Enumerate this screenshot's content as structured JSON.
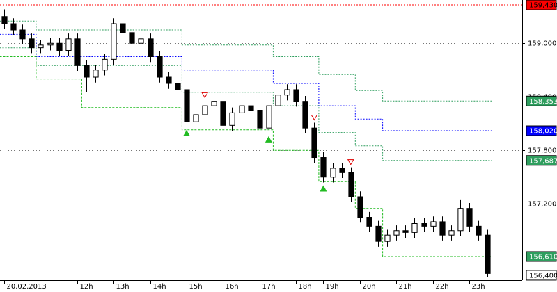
{
  "chart_data": {
    "type": "candlestick",
    "xlim": [
      -0.46,
      56.8
    ],
    "xticks": [
      {
        "value": 0,
        "label": "20.02.2013"
      },
      {
        "value": 8,
        "label": "12h"
      },
      {
        "value": 12,
        "label": "13h"
      },
      {
        "value": 16,
        "label": "14h"
      },
      {
        "value": 20,
        "label": "15h"
      },
      {
        "value": 24,
        "label": "16h"
      },
      {
        "value": 28,
        "label": "17h"
      },
      {
        "value": 32,
        "label": "18h"
      },
      {
        "value": 35,
        "label": "19h"
      },
      {
        "value": 39,
        "label": "20h"
      },
      {
        "value": 43,
        "label": "21h"
      },
      {
        "value": 47,
        "label": "22h"
      },
      {
        "value": 51,
        "label": "23h"
      }
    ],
    "ylim": [
      156.345,
      159.485
    ],
    "yticks": [
      {
        "value": 159.0,
        "label": "159,000"
      },
      {
        "value": 158.4,
        "label": "158,400"
      },
      {
        "value": 157.8,
        "label": "157,800"
      },
      {
        "value": 157.2,
        "label": "157,200"
      }
    ],
    "grid": true,
    "up_color": "#ffffff",
    "down_color": "#000000",
    "open": [
      159.3,
      159.22,
      159.15,
      159.05,
      158.95,
      158.98,
      159.0,
      158.92,
      159.05,
      158.75,
      158.62,
      158.7,
      158.82,
      159.22,
      159.12,
      159.0,
      159.05,
      158.85,
      158.62,
      158.55,
      158.48,
      158.12,
      158.2,
      158.3,
      158.35,
      158.08,
      158.22,
      158.3,
      158.25,
      158.05,
      158.3,
      158.42,
      158.48,
      158.35,
      158.05,
      157.72,
      157.5,
      157.6,
      157.55,
      157.28,
      157.05,
      156.95,
      156.78,
      156.85,
      156.9,
      156.88,
      156.98,
      156.95,
      157.0,
      156.85,
      156.9,
      157.15,
      156.95,
      156.85
    ],
    "close": [
      159.22,
      159.15,
      159.05,
      158.95,
      158.98,
      159.0,
      158.92,
      159.05,
      158.75,
      158.62,
      158.7,
      158.82,
      159.22,
      159.12,
      159.0,
      159.05,
      158.85,
      158.62,
      158.55,
      158.48,
      158.12,
      158.2,
      158.3,
      158.35,
      158.08,
      158.22,
      158.3,
      158.25,
      158.05,
      158.3,
      158.42,
      158.48,
      158.35,
      158.05,
      157.72,
      157.5,
      157.6,
      157.55,
      157.28,
      157.05,
      156.95,
      156.78,
      156.85,
      156.9,
      156.88,
      156.98,
      156.95,
      157.0,
      156.85,
      156.9,
      157.15,
      156.95,
      156.85,
      156.42
    ],
    "high": [
      159.38,
      159.28,
      159.21,
      159.11,
      159.04,
      159.06,
      159.06,
      159.11,
      159.11,
      158.81,
      158.76,
      158.88,
      159.28,
      159.28,
      159.18,
      159.11,
      159.11,
      158.91,
      158.68,
      158.61,
      158.54,
      158.26,
      158.36,
      158.41,
      158.41,
      158.28,
      158.36,
      158.36,
      158.31,
      158.36,
      158.48,
      158.54,
      158.54,
      158.41,
      158.11,
      157.78,
      157.66,
      157.66,
      157.61,
      157.34,
      157.11,
      157.01,
      156.91,
      156.96,
      156.96,
      157.04,
      157.04,
      157.06,
      157.06,
      156.96,
      157.25,
      157.21,
      157.01,
      156.91
    ],
    "low": [
      159.16,
      159.09,
      158.99,
      158.89,
      158.89,
      158.92,
      158.86,
      158.86,
      158.69,
      158.45,
      158.56,
      158.64,
      158.76,
      159.06,
      158.94,
      158.94,
      158.79,
      158.56,
      158.49,
      158.42,
      158.06,
      158.06,
      158.14,
      158.24,
      158.02,
      158.02,
      158.16,
      158.19,
      157.99,
      157.99,
      158.24,
      158.36,
      158.29,
      157.99,
      157.66,
      157.44,
      157.44,
      157.49,
      157.22,
      156.99,
      156.89,
      156.72,
      156.72,
      156.79,
      156.82,
      156.82,
      156.89,
      156.89,
      156.79,
      156.79,
      156.84,
      156.89,
      156.79,
      156.38
    ],
    "series": [
      {
        "color": "#2e9e5e",
        "values": [
          159.25,
          159.25,
          159.25,
          159.25,
          159.15,
          159.15,
          159.15,
          159.15,
          159.15,
          159.15,
          159.15,
          159.15,
          159.15,
          159.15,
          159.15,
          159.15,
          159.15,
          159.15,
          159.15,
          159.15,
          158.98,
          158.98,
          158.98,
          158.98,
          158.98,
          158.98,
          158.98,
          158.98,
          158.98,
          158.98,
          158.85,
          158.85,
          158.85,
          158.85,
          158.85,
          158.65,
          158.65,
          158.65,
          158.65,
          158.47,
          158.47,
          158.47,
          158.353,
          158.353,
          158.353,
          158.353,
          158.353,
          158.353,
          158.353,
          158.353,
          158.353,
          158.353,
          158.353,
          158.353
        ]
      },
      {
        "color": "#0000ff",
        "values": [
          159.1,
          159.1,
          159.1,
          159.1,
          158.85,
          158.85,
          158.85,
          158.85,
          158.85,
          158.85,
          158.85,
          158.85,
          158.85,
          158.85,
          158.85,
          158.85,
          158.85,
          158.85,
          158.85,
          158.85,
          158.7,
          158.7,
          158.7,
          158.7,
          158.7,
          158.7,
          158.7,
          158.7,
          158.7,
          158.7,
          158.55,
          158.55,
          158.55,
          158.55,
          158.55,
          158.3,
          158.3,
          158.3,
          158.3,
          158.15,
          158.15,
          158.15,
          158.02,
          158.02,
          158.02,
          158.02,
          158.02,
          158.02,
          158.02,
          158.02,
          158.02,
          158.02,
          158.02,
          158.02
        ]
      },
      {
        "color": "#2e9e5e",
        "values": [
          158.95,
          158.95,
          158.95,
          158.95,
          158.75,
          158.75,
          158.75,
          158.75,
          158.75,
          158.75,
          158.75,
          158.75,
          158.75,
          158.75,
          158.75,
          158.75,
          158.75,
          158.75,
          158.75,
          158.75,
          158.45,
          158.45,
          158.45,
          158.45,
          158.45,
          158.45,
          158.45,
          158.45,
          158.45,
          158.45,
          158.3,
          158.3,
          158.3,
          158.3,
          158.3,
          158.0,
          158.0,
          158.0,
          158.0,
          157.85,
          157.85,
          157.85,
          157.687,
          157.687,
          157.687,
          157.687,
          157.687,
          157.687,
          157.687,
          157.687,
          157.687,
          157.687,
          157.687,
          157.687
        ]
      },
      {
        "color": "#22bb22",
        "values": [
          158.85,
          158.85,
          158.85,
          158.85,
          158.6,
          158.6,
          158.6,
          158.6,
          158.6,
          158.28,
          158.28,
          158.28,
          158.28,
          158.28,
          158.28,
          158.28,
          158.28,
          158.28,
          158.28,
          158.28,
          158.03,
          158.03,
          158.03,
          158.03,
          158.03,
          158.03,
          158.03,
          158.03,
          158.03,
          158.03,
          157.8,
          157.8,
          157.8,
          157.8,
          157.8,
          157.45,
          157.45,
          157.45,
          157.45,
          157.15,
          157.15,
          157.15,
          156.61,
          156.61,
          156.61,
          156.61,
          156.61,
          156.61,
          156.61,
          156.61,
          156.61,
          156.61,
          156.61,
          156.61
        ]
      }
    ],
    "buy_signals": [
      20,
      29,
      35
    ],
    "buy_color": "#22bb22",
    "sell_signals": [
      22,
      34,
      38
    ],
    "sell_color": "#dd0000",
    "annotations": [
      {
        "value": 159.43,
        "label": "159,430",
        "color": "#ff0000",
        "text_color": "#000000"
      },
      {
        "value": 158.353,
        "label": "158,353",
        "color": "#2e9e5e",
        "text_color": "#ffffff"
      },
      {
        "value": 158.02,
        "label": "158,020",
        "color": "#0000ff",
        "text_color": "#ffffff"
      },
      {
        "value": 157.687,
        "label": "157,687",
        "color": "#2e9e5e",
        "text_color": "#ffffff"
      },
      {
        "value": 156.61,
        "label": "156,610",
        "color": "#2e9e5e",
        "text_color": "#ffffff"
      },
      {
        "value": 156.4,
        "label": "156,400",
        "color": "#ffffff",
        "text_color": "#000000"
      }
    ]
  }
}
